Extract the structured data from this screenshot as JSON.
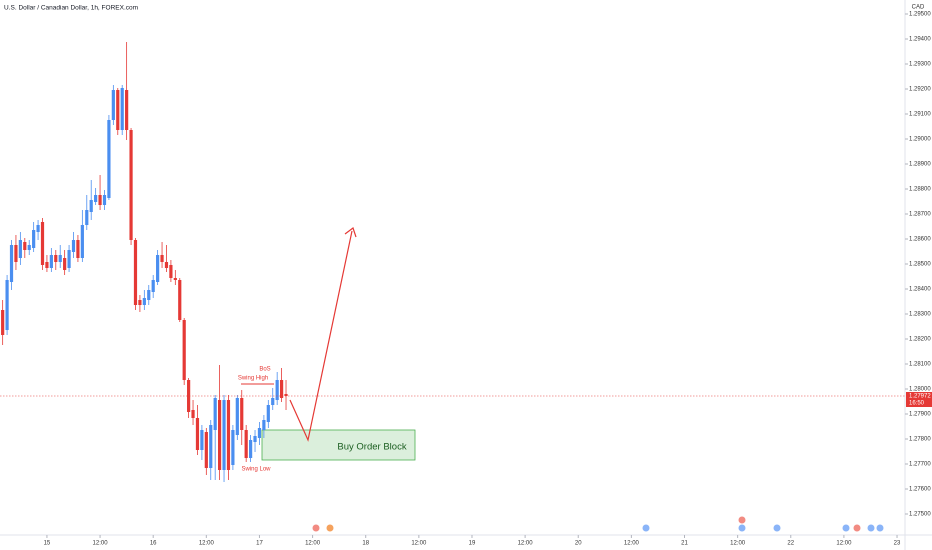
{
  "chart_data": {
    "type": "candlestick",
    "title": "U.S. Dollar / Canadian Dollar, 1h, FOREX.com",
    "currency": "CAD",
    "up_color": "#4a8ef0",
    "down_color": "#e53935",
    "x": [
      -10,
      -9,
      -8,
      -7,
      -6,
      -5,
      -4,
      -3,
      -2,
      -1,
      0,
      1,
      2,
      3,
      4,
      5,
      6,
      7,
      8,
      9,
      10,
      11,
      12,
      13,
      14,
      15,
      16,
      17,
      18,
      19,
      20,
      21,
      22,
      23,
      24,
      25,
      26,
      27,
      28,
      29,
      30,
      31,
      32,
      33,
      34,
      35,
      36,
      37,
      38,
      39,
      40,
      41,
      42,
      43,
      44,
      45,
      46,
      47,
      48,
      49,
      50,
      51,
      52,
      53,
      54
    ],
    "open": [
      1.28316,
      1.28236,
      1.28428,
      1.28576,
      1.28524,
      1.28588,
      1.28556,
      1.28564,
      1.28628,
      1.28668,
      1.28508,
      1.28484,
      1.28536,
      1.28508,
      1.28524,
      1.28484,
      1.28548,
      1.28596,
      1.28524,
      1.28656,
      1.28708,
      1.28748,
      1.28776,
      1.28736,
      1.28764,
      1.29076,
      1.29196,
      1.29036,
      1.29196,
      1.29036,
      1.28596,
      1.28356,
      1.28336,
      1.28356,
      1.28388,
      1.28428,
      1.28536,
      1.28508,
      1.28496,
      1.28444,
      1.28436,
      1.28276,
      1.28036,
      1.27916,
      1.27884,
      1.27756,
      1.27828,
      1.27684,
      1.27836,
      1.27956,
      1.27676,
      1.27956,
      1.27696,
      1.27816,
      1.27964,
      1.27836,
      1.27724,
      1.27788,
      1.27804,
      1.27836,
      1.27868,
      1.27936,
      1.27956,
      1.28036,
      1.2798
    ],
    "high": [
      1.28356,
      1.28456,
      1.28596,
      1.28616,
      1.28628,
      1.28604,
      1.28596,
      1.28668,
      1.28676,
      1.28684,
      1.28536,
      1.28564,
      1.28556,
      1.28576,
      1.28556,
      1.28576,
      1.28628,
      1.28616,
      1.28716,
      1.28776,
      1.28836,
      1.28804,
      1.28856,
      1.28796,
      1.29096,
      1.29216,
      1.29204,
      1.29216,
      1.29388,
      1.29044,
      1.28604,
      1.28376,
      1.28396,
      1.28416,
      1.28456,
      1.28556,
      1.28588,
      1.28576,
      1.28516,
      1.28476,
      1.28444,
      1.28284,
      1.28044,
      1.27956,
      1.27936,
      1.27856,
      1.27844,
      1.27876,
      1.27976,
      1.28096,
      1.27976,
      1.27976,
      1.27856,
      1.27976,
      1.27996,
      1.27856,
      1.27816,
      1.27836,
      1.27868,
      1.27896,
      1.27956,
      1.28004,
      1.28068,
      1.28084,
      1.28036
    ],
    "low": [
      1.28176,
      1.28216,
      1.28396,
      1.28476,
      1.28496,
      1.28524,
      1.28536,
      1.28548,
      1.28596,
      1.28476,
      1.28468,
      1.28468,
      1.28476,
      1.28484,
      1.28456,
      1.28468,
      1.28524,
      1.28508,
      1.28508,
      1.28636,
      1.28676,
      1.28736,
      1.28716,
      1.28716,
      1.28756,
      1.29056,
      1.29016,
      1.29016,
      1.28996,
      1.28576,
      1.28316,
      1.28308,
      1.28316,
      1.28336,
      1.28364,
      1.28416,
      1.28484,
      1.28468,
      1.28428,
      1.28416,
      1.28268,
      1.28016,
      1.27884,
      1.27856,
      1.27736,
      1.27716,
      1.27656,
      1.27636,
      1.27636,
      1.27636,
      1.27628,
      1.27636,
      1.27676,
      1.27796,
      1.27776,
      1.27708,
      1.27708,
      1.27748,
      1.27776,
      1.27804,
      1.27844,
      1.27916,
      1.27936,
      1.27948,
      1.27916
    ],
    "close": [
      1.28216,
      1.28436,
      1.28576,
      1.28508,
      1.28596,
      1.28556,
      1.28576,
      1.28636,
      1.28656,
      1.28496,
      1.28484,
      1.28536,
      1.28508,
      1.28536,
      1.28476,
      1.28556,
      1.28596,
      1.28524,
      1.28656,
      1.28716,
      1.28756,
      1.28776,
      1.28736,
      1.28776,
      1.29076,
      1.29196,
      1.29036,
      1.29204,
      1.29036,
      1.28596,
      1.28336,
      1.28336,
      1.28364,
      1.28396,
      1.28436,
      1.28536,
      1.28508,
      1.28484,
      1.28444,
      1.28436,
      1.28276,
      1.28036,
      1.27908,
      1.27884,
      1.27756,
      1.27836,
      1.27684,
      1.27856,
      1.27964,
      1.27676,
      1.27956,
      1.27676,
      1.27836,
      1.27964,
      1.27836,
      1.27724,
      1.27796,
      1.27812,
      1.27844,
      1.27876,
      1.27936,
      1.27964,
      1.28036,
      1.27964,
      1.27972
    ],
    "last_price": 1.27972,
    "countdown": "16:50",
    "xlim": [
      -10.6,
      193.8
    ],
    "xticks": [
      {
        "value": 0,
        "label": "15"
      },
      {
        "value": 12,
        "label": "12:00"
      },
      {
        "value": 24,
        "label": "16"
      },
      {
        "value": 36,
        "label": "12:00"
      },
      {
        "value": 48,
        "label": "17"
      },
      {
        "value": 60,
        "label": "12:00"
      },
      {
        "value": 72,
        "label": "18"
      },
      {
        "value": 84,
        "label": "12:00"
      },
      {
        "value": 96,
        "label": "19"
      },
      {
        "value": 108,
        "label": "12:00"
      },
      {
        "value": 120,
        "label": "20"
      },
      {
        "value": 132,
        "label": "12:00"
      },
      {
        "value": 144,
        "label": "21"
      },
      {
        "value": 156,
        "label": "12:00"
      },
      {
        "value": 168,
        "label": "22"
      },
      {
        "value": 180,
        "label": "12:00"
      },
      {
        "value": 192,
        "label": "23"
      }
    ],
    "ylim": [
      1.2742,
      1.29556
    ],
    "yticks": [
      {
        "value": 1.295,
        "label": "1.29500"
      },
      {
        "value": 1.294,
        "label": "1.29400"
      },
      {
        "value": 1.293,
        "label": "1.29300"
      },
      {
        "value": 1.292,
        "label": "1.29200"
      },
      {
        "value": 1.291,
        "label": "1.29100"
      },
      {
        "value": 1.29,
        "label": "1.29000"
      },
      {
        "value": 1.289,
        "label": "1.28900"
      },
      {
        "value": 1.288,
        "label": "1.28800"
      },
      {
        "value": 1.287,
        "label": "1.28700"
      },
      {
        "value": 1.286,
        "label": "1.28600"
      },
      {
        "value": 1.285,
        "label": "1.28500"
      },
      {
        "value": 1.284,
        "label": "1.28400"
      },
      {
        "value": 1.283,
        "label": "1.28300"
      },
      {
        "value": 1.282,
        "label": "1.28200"
      },
      {
        "value": 1.281,
        "label": "1.28100"
      },
      {
        "value": 1.28,
        "label": "1.28000"
      },
      {
        "value": 1.279,
        "label": "1.27900"
      },
      {
        "value": 1.278,
        "label": "1.27800"
      },
      {
        "value": 1.277,
        "label": "1.27700"
      },
      {
        "value": 1.276,
        "label": "1.27600"
      },
      {
        "value": 1.275,
        "label": "1.27500"
      }
    ],
    "grid": false,
    "annotations": {
      "bos": "BoS",
      "swing_high": "Swing High",
      "swing_low": "Swing Low",
      "order_block": "Buy Order Block"
    }
  }
}
